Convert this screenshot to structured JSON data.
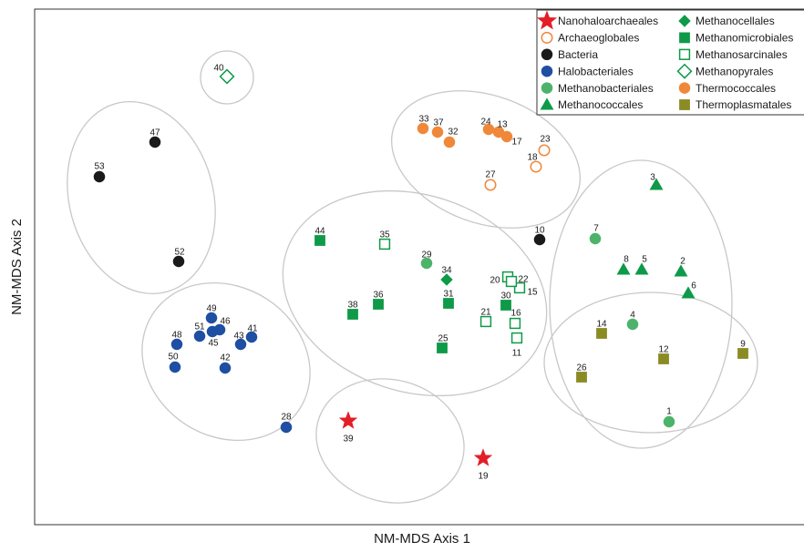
{
  "chart_data": {
    "type": "scatter",
    "xlabel": "NM-MDS Axis 1",
    "ylabel": "NM-MDS Axis 2",
    "legend_placement": "top-right",
    "grid": false,
    "ticks": false,
    "xlim": [
      0,
      882
    ],
    "ylim": [
      0,
      601
    ],
    "groups": [
      {
        "name": "Nanohaloarchaeales",
        "marker": "star",
        "color": "#e41e26",
        "fill": true
      },
      {
        "name": "Archaeoglobales",
        "marker": "circle",
        "color": "#f0883a",
        "fill": false
      },
      {
        "name": "Bacteria",
        "marker": "circle",
        "color": "#1a1a1a",
        "fill": true
      },
      {
        "name": "Halobacteriales",
        "marker": "circle",
        "color": "#1f4fa3",
        "fill": true
      },
      {
        "name": "Methanobacteriales",
        "marker": "circle",
        "color": "#4db36b",
        "fill": true
      },
      {
        "name": "Methanococcales",
        "marker": "triangle",
        "color": "#0e9a48",
        "fill": true
      },
      {
        "name": "Methanocellales",
        "marker": "diamond",
        "color": "#0e9a48",
        "fill": true
      },
      {
        "name": "Methanomicrobiales",
        "marker": "square",
        "color": "#0e9a48",
        "fill": true
      },
      {
        "name": "Methanosarcinales",
        "marker": "square",
        "color": "#0e9a48",
        "fill": false
      },
      {
        "name": "Methanopyrales",
        "marker": "diamond",
        "color": "#0e9a48",
        "fill": false
      },
      {
        "name": "Thermococcales",
        "marker": "circle",
        "color": "#f0883a",
        "fill": true
      },
      {
        "name": "Thermoplasmatales",
        "marker": "square",
        "color": "#8b8b25",
        "fill": true
      }
    ],
    "points": [
      {
        "id": "1",
        "group": "Methanobacteriales",
        "x": 734,
        "y": 463
      },
      {
        "id": "2",
        "group": "Methanococcales",
        "x": 747,
        "y": 298
      },
      {
        "id": "3",
        "group": "Methanococcales",
        "x": 720,
        "y": 203
      },
      {
        "id": "4",
        "group": "Methanobacteriales",
        "x": 694,
        "y": 356
      },
      {
        "id": "5",
        "group": "Methanococcales",
        "x": 704,
        "y": 296
      },
      {
        "id": "6",
        "group": "Methanococcales",
        "x": 755,
        "y": 322
      },
      {
        "id": "7",
        "group": "Methanobacteriales",
        "x": 653,
        "y": 262
      },
      {
        "id": "8",
        "group": "Methanococcales",
        "x": 684,
        "y": 296
      },
      {
        "id": "9",
        "group": "Thermoplasmatales",
        "x": 815,
        "y": 388
      },
      {
        "id": "10",
        "group": "Bacteria",
        "x": 592,
        "y": 263
      },
      {
        "id": "11",
        "group": "Methanosarcinales",
        "x": 567,
        "y": 371
      },
      {
        "id": "12",
        "group": "Thermoplasmatales",
        "x": 728,
        "y": 394
      },
      {
        "id": "13",
        "group": "Thermococcales",
        "x": 547,
        "y": 145
      },
      {
        "id": "14",
        "group": "Thermoplasmatales",
        "x": 660,
        "y": 366
      },
      {
        "id": "15",
        "group": "Methanosarcinales",
        "x": 570,
        "y": 316
      },
      {
        "id": "16",
        "group": "Methanosarcinales",
        "x": 565,
        "y": 355
      },
      {
        "id": "17",
        "group": "Thermococcales",
        "x": 556,
        "y": 150
      },
      {
        "id": "18",
        "group": "Archaeoglobales",
        "x": 588,
        "y": 183
      },
      {
        "id": "19",
        "group": "Nanohaloarchaeales",
        "x": 530,
        "y": 503
      },
      {
        "id": "20",
        "group": "Methanosarcinales",
        "x": 557,
        "y": 304
      },
      {
        "id": "21",
        "group": "Methanosarcinales",
        "x": 533,
        "y": 353
      },
      {
        "id": "22",
        "group": "Methanosarcinales",
        "x": 561,
        "y": 309
      },
      {
        "id": "23",
        "group": "Archaeoglobales",
        "x": 597,
        "y": 165
      },
      {
        "id": "24",
        "group": "Thermococcales",
        "x": 536,
        "y": 142
      },
      {
        "id": "25",
        "group": "Methanomicrobiales",
        "x": 485,
        "y": 382
      },
      {
        "id": "26",
        "group": "Thermoplasmatales",
        "x": 638,
        "y": 414
      },
      {
        "id": "27",
        "group": "Archaeoglobales",
        "x": 538,
        "y": 203
      },
      {
        "id": "28",
        "group": "Halobacteriales",
        "x": 314,
        "y": 469
      },
      {
        "id": "29",
        "group": "Methanobacteriales",
        "x": 468,
        "y": 289
      },
      {
        "id": "30",
        "group": "Methanomicrobiales",
        "x": 555,
        "y": 335
      },
      {
        "id": "31",
        "group": "Methanomicrobiales",
        "x": 492,
        "y": 333
      },
      {
        "id": "32",
        "group": "Thermococcales",
        "x": 493,
        "y": 156
      },
      {
        "id": "33",
        "group": "Thermococcales",
        "x": 464,
        "y": 141
      },
      {
        "id": "34",
        "group": "Methanocellales",
        "x": 490,
        "y": 307
      },
      {
        "id": "35",
        "group": "Methanosarcinales",
        "x": 422,
        "y": 268
      },
      {
        "id": "36",
        "group": "Methanomicrobiales",
        "x": 415,
        "y": 334
      },
      {
        "id": "37",
        "group": "Thermococcales",
        "x": 480,
        "y": 145
      },
      {
        "id": "38",
        "group": "Methanomicrobiales",
        "x": 387,
        "y": 345
      },
      {
        "id": "39",
        "group": "Nanohaloarchaeales",
        "x": 382,
        "y": 462
      },
      {
        "id": "40",
        "group": "Methanopyrales",
        "x": 249,
        "y": 84
      },
      {
        "id": "41",
        "group": "Halobacteriales",
        "x": 276,
        "y": 370
      },
      {
        "id": "42",
        "group": "Halobacteriales",
        "x": 247,
        "y": 404
      },
      {
        "id": "43",
        "group": "Halobacteriales",
        "x": 264,
        "y": 378
      },
      {
        "id": "44",
        "group": "Methanomicrobiales",
        "x": 351,
        "y": 264
      },
      {
        "id": "45",
        "group": "Halobacteriales",
        "x": 233,
        "y": 364
      },
      {
        "id": "46",
        "group": "Halobacteriales",
        "x": 241,
        "y": 362
      },
      {
        "id": "47",
        "group": "Bacteria",
        "x": 170,
        "y": 156
      },
      {
        "id": "48",
        "group": "Halobacteriales",
        "x": 194,
        "y": 378
      },
      {
        "id": "49",
        "group": "Halobacteriales",
        "x": 232,
        "y": 349
      },
      {
        "id": "50",
        "group": "Halobacteriales",
        "x": 192,
        "y": 403
      },
      {
        "id": "51",
        "group": "Halobacteriales",
        "x": 219,
        "y": 369
      },
      {
        "id": "52",
        "group": "Bacteria",
        "x": 196,
        "y": 287
      },
      {
        "id": "53",
        "group": "Bacteria",
        "x": 109,
        "y": 194
      }
    ],
    "label_offsets": {
      "1": [
        0,
        -12
      ],
      "2": [
        2,
        -12
      ],
      "3": [
        -4,
        -9
      ],
      "4": [
        0,
        -11
      ],
      "5": [
        3,
        -12
      ],
      "6": [
        6,
        -9
      ],
      "7": [
        1,
        -12
      ],
      "8": [
        3,
        -12
      ],
      "9": [
        0,
        -11
      ],
      "10": [
        0,
        -11
      ],
      "11": [
        0,
        16
      ],
      "12": [
        0,
        -11
      ],
      "13": [
        4,
        -9
      ],
      "14": [
        0,
        -11
      ],
      "15": [
        14,
        4
      ],
      "16": [
        1,
        -12
      ],
      "17": [
        11,
        5
      ],
      "18": [
        -4,
        -11
      ],
      "19": [
        0,
        19
      ],
      "20": [
        -14,
        3
      ],
      "21": [
        0,
        -11
      ],
      "22": [
        13,
        -3
      ],
      "23": [
        1,
        -13
      ],
      "24": [
        -3,
        -9
      ],
      "25": [
        1,
        -11
      ],
      "26": [
        0,
        -11
      ],
      "27": [
        0,
        -12
      ],
      "28": [
        0,
        -12
      ],
      "29": [
        0,
        -10
      ],
      "30": [
        0,
        -11
      ],
      "31": [
        0,
        -11
      ],
      "32": [
        4,
        -12
      ],
      "33": [
        1,
        -11
      ],
      "34": [
        0,
        -11
      ],
      "35": [
        0,
        -11
      ],
      "36": [
        0,
        -11
      ],
      "37": [
        1,
        -11
      ],
      "38": [
        0,
        -11
      ],
      "39": [
        0,
        19
      ],
      "40": [
        -9,
        -10
      ],
      "41": [
        1,
        -10
      ],
      "42": [
        0,
        -12
      ],
      "43": [
        -2,
        -10
      ],
      "44": [
        0,
        -11
      ],
      "45": [
        1,
        12
      ],
      "46": [
        6,
        -10
      ],
      "47": [
        0,
        -11
      ],
      "48": [
        0,
        -11
      ],
      "49": [
        0,
        -11
      ],
      "50": [
        -2,
        -12
      ],
      "51": [
        0,
        -11
      ],
      "52": [
        1,
        -11
      ],
      "53": [
        0,
        -12
      ]
    },
    "ellipses": [
      {
        "cx": 249,
        "cy": 85,
        "rx": 29,
        "ry": 29,
        "rotate": 0
      },
      {
        "cx": 155,
        "cy": 217,
        "rx": 79,
        "ry": 107,
        "rotate": -15
      },
      {
        "cx": 248,
        "cy": 397,
        "rx": 96,
        "ry": 82,
        "rotate": 33
      },
      {
        "cx": 428,
        "cy": 484,
        "rx": 82,
        "ry": 67,
        "rotate": 15
      },
      {
        "cx": 455,
        "cy": 322,
        "rx": 148,
        "ry": 108,
        "rotate": 18
      },
      {
        "cx": 533,
        "cy": 175,
        "rx": 107,
        "ry": 70,
        "rotate": 20
      },
      {
        "cx": 703,
        "cy": 334,
        "rx": 100,
        "ry": 158,
        "rotate": 0
      },
      {
        "cx": 714,
        "cy": 398,
        "rx": 117,
        "ry": 77,
        "rotate": 0
      }
    ]
  }
}
